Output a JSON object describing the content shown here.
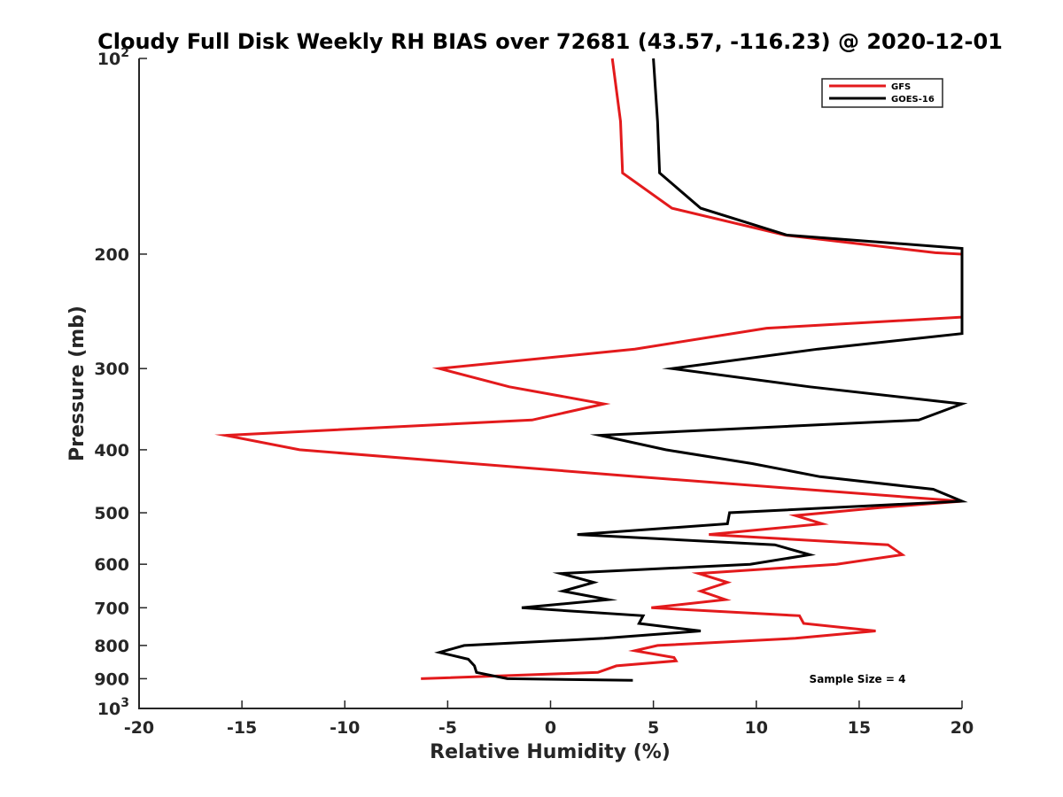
{
  "chart_data": {
    "type": "line",
    "title": "Cloudy Full Disk Weekly RH BIAS over 72681 (43.57, -116.23) @ 2020-12-01",
    "xlabel": "Relative Humidity (%)",
    "ylabel": "Pressure (mb)",
    "xlim": [
      -20,
      20
    ],
    "ylim": [
      100,
      1000
    ],
    "y_scale": "log",
    "y_reversed": true,
    "grid": false,
    "legend_position": "top-right",
    "x_ticks": [
      -20,
      -15,
      -10,
      -5,
      0,
      5,
      10,
      15,
      20
    ],
    "y_ticks": [
      100,
      200,
      300,
      400,
      500,
      600,
      700,
      800,
      900,
      1000
    ],
    "y_tick_labels": [
      {
        "base": "10",
        "exp": "2"
      },
      {
        "base": "200",
        "exp": ""
      },
      {
        "base": "300",
        "exp": ""
      },
      {
        "base": "400",
        "exp": ""
      },
      {
        "base": "500",
        "exp": ""
      },
      {
        "base": "600",
        "exp": ""
      },
      {
        "base": "700",
        "exp": ""
      },
      {
        "base": "800",
        "exp": ""
      },
      {
        "base": "900",
        "exp": ""
      },
      {
        "base": "10",
        "exp": "3"
      }
    ],
    "annotation": "Sample Size = 4",
    "series": [
      {
        "name": "GFS",
        "color": "#e31a1c",
        "points": [
          [
            3.0,
            100
          ],
          [
            3.4,
            125
          ],
          [
            3.5,
            150
          ],
          [
            5.9,
            170
          ],
          [
            11.4,
            187
          ],
          [
            18.7,
            199
          ],
          [
            20.0,
            200
          ],
          [
            20.0,
            250
          ],
          [
            10.5,
            260
          ],
          [
            4.1,
            280
          ],
          [
            -5.4,
            300
          ],
          [
            -2.0,
            320
          ],
          [
            2.6,
            340
          ],
          [
            -0.9,
            360
          ],
          [
            -15.8,
            380
          ],
          [
            -12.2,
            400
          ],
          [
            4.2,
            440
          ],
          [
            20.0,
            480
          ],
          [
            16.0,
            491
          ],
          [
            11.9,
            505
          ],
          [
            13.2,
            520
          ],
          [
            7.7,
            540
          ],
          [
            16.4,
            560
          ],
          [
            17.1,
            580
          ],
          [
            13.9,
            600
          ],
          [
            7.2,
            620
          ],
          [
            8.6,
            640
          ],
          [
            7.3,
            660
          ],
          [
            8.5,
            680
          ],
          [
            4.9,
            700
          ],
          [
            12.1,
            720
          ],
          [
            12.3,
            740
          ],
          [
            15.8,
            760
          ],
          [
            11.9,
            780
          ],
          [
            5.2,
            800
          ],
          [
            4.1,
            815
          ],
          [
            6.0,
            835
          ],
          [
            6.1,
            845
          ],
          [
            3.2,
            860
          ],
          [
            2.3,
            880
          ],
          [
            -6.3,
            900
          ]
        ]
      },
      {
        "name": "GOES-16",
        "color": "#000000",
        "points": [
          [
            5.0,
            100
          ],
          [
            5.2,
            125
          ],
          [
            5.3,
            150
          ],
          [
            7.3,
            170
          ],
          [
            11.5,
            187
          ],
          [
            20.0,
            196
          ],
          [
            20.0,
            265
          ],
          [
            13.0,
            280
          ],
          [
            5.9,
            300
          ],
          [
            12.6,
            320
          ],
          [
            20.0,
            340
          ],
          [
            17.9,
            360
          ],
          [
            2.4,
            380
          ],
          [
            5.6,
            400
          ],
          [
            9.8,
            420
          ],
          [
            13.1,
            440
          ],
          [
            18.6,
            460
          ],
          [
            20.0,
            480
          ],
          [
            8.7,
            500
          ],
          [
            8.6,
            520
          ],
          [
            1.3,
            540
          ],
          [
            10.9,
            560
          ],
          [
            12.6,
            580
          ],
          [
            9.7,
            600
          ],
          [
            0.5,
            620
          ],
          [
            2.1,
            640
          ],
          [
            0.6,
            660
          ],
          [
            2.8,
            680
          ],
          [
            -1.4,
            700
          ],
          [
            4.5,
            720
          ],
          [
            4.3,
            740
          ],
          [
            7.3,
            760
          ],
          [
            2.6,
            780
          ],
          [
            -4.2,
            800
          ],
          [
            -5.4,
            820
          ],
          [
            -4.0,
            840
          ],
          [
            -3.7,
            860
          ],
          [
            -3.6,
            880
          ],
          [
            -2.1,
            900
          ],
          [
            4.0,
            905
          ]
        ]
      }
    ]
  }
}
